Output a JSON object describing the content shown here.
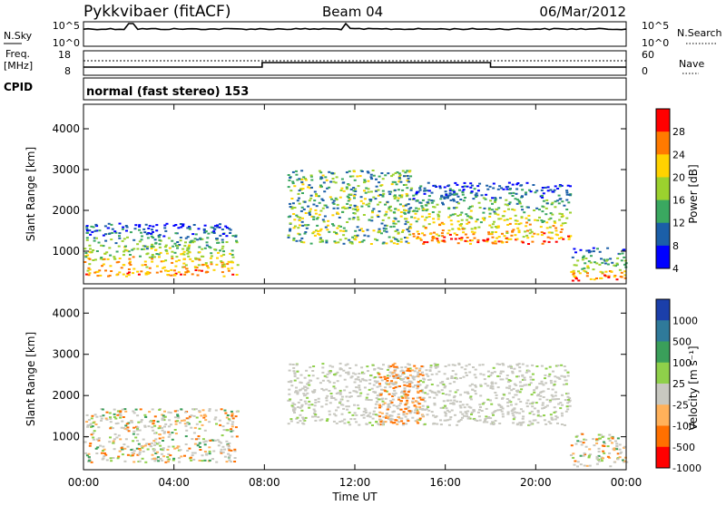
{
  "header": {
    "station": "Pykkvibaer (fitACF)",
    "beam": "Beam 04",
    "date": "06/Mar/2012"
  },
  "sky_panel": {
    "left_label": "N.Sky",
    "right_label": "N.Search",
    "ticks": [
      "10^5",
      "10^0"
    ]
  },
  "freq_panel": {
    "left_label_1": "Freq.",
    "left_label_2": "[MHz]",
    "left_ticks": [
      "18",
      "8"
    ],
    "right_label": "Nave",
    "right_ticks": [
      "60",
      "0"
    ]
  },
  "cpid": {
    "label": "CPID",
    "mode": "normal (fast stereo) 153"
  },
  "chart_data": [
    {
      "type": "heatmap",
      "panel": "power",
      "ylabel": "Slant Range [km]",
      "yticks": [
        "4000",
        "3000",
        "2000",
        "1000"
      ],
      "ylim": [
        200,
        4600
      ],
      "xlim": [
        0,
        24
      ],
      "colorbar": {
        "label": "Power [dB]",
        "ticks": [
          "28",
          "24",
          "20",
          "16",
          "12",
          "8",
          "4"
        ],
        "colors": [
          "#ff0000",
          "#ff7a00",
          "#ffd200",
          "#9bd12e",
          "#3aa860",
          "#1b5fa8",
          "#0000ff"
        ]
      },
      "echo_regions": [
        {
          "t0": 0.0,
          "t1": 6.8,
          "r0": 400,
          "r1": 1700,
          "level": "strong"
        },
        {
          "t0": 9.0,
          "t1": 14.5,
          "r0": 1200,
          "r1": 3000,
          "level": "medium"
        },
        {
          "t0": 14.5,
          "t1": 21.5,
          "r0": 1200,
          "r1": 2700,
          "level": "strong"
        },
        {
          "t0": 21.5,
          "t1": 24.0,
          "r0": 300,
          "r1": 1100,
          "level": "strong"
        }
      ]
    },
    {
      "type": "heatmap",
      "panel": "velocity",
      "ylabel": "Slant Range [km]",
      "yticks": [
        "4000",
        "3000",
        "2000",
        "1000"
      ],
      "ylim": [
        200,
        4600
      ],
      "xlim": [
        0,
        24
      ],
      "xlabel": "Time UT",
      "xticks": [
        "00:00",
        "04:00",
        "08:00",
        "12:00",
        "16:00",
        "20:00",
        "00:00"
      ],
      "colorbar": {
        "label": "Velocity [m s⁻¹]",
        "ticks": [
          "1000",
          "500",
          "100",
          "25",
          "-25",
          "-100",
          "-500",
          "-1000"
        ],
        "colors": [
          "#1b3faa",
          "#2f7a9a",
          "#3a9f5a",
          "#8fd04a",
          "#c8c8c0",
          "#ffb15a",
          "#ff7000",
          "#ff0000"
        ]
      },
      "echo_regions": [
        {
          "t0": 0.0,
          "t1": 6.8,
          "r0": 400,
          "r1": 1700,
          "level": "mixed"
        },
        {
          "t0": 9.0,
          "t1": 21.5,
          "r0": 1300,
          "r1": 2800,
          "level": "ground"
        },
        {
          "t0": 13.0,
          "t1": 15.0,
          "r0": 1300,
          "r1": 2800,
          "level": "negative"
        },
        {
          "t0": 21.5,
          "t1": 24.0,
          "r0": 300,
          "r1": 1100,
          "level": "mixed"
        }
      ]
    }
  ]
}
